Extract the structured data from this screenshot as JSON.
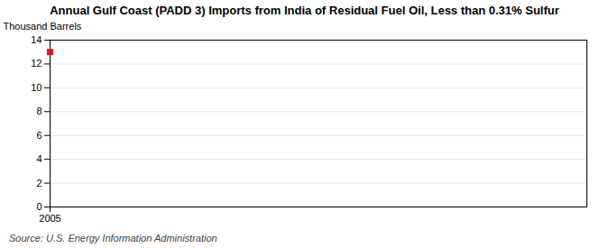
{
  "chart_data": {
    "type": "scatter",
    "title": "Annual Gulf Coast (PADD 3) Imports from India of Residual Fuel Oil, Less than 0.31% Sulfur",
    "ylabel": "Thousand Barrels",
    "annotations": [
      "Source: U.S. Energy Information Administration"
    ],
    "x": [
      2005
    ],
    "values": [
      13
    ],
    "color": "#cc2222",
    "marker": "square",
    "xlim": [
      2005,
      2012
    ],
    "xticks": [
      2005
    ],
    "ylim": [
      0,
      14
    ],
    "yticks": [
      0,
      2,
      4,
      6,
      8,
      10,
      12,
      14
    ],
    "grid": true
  }
}
